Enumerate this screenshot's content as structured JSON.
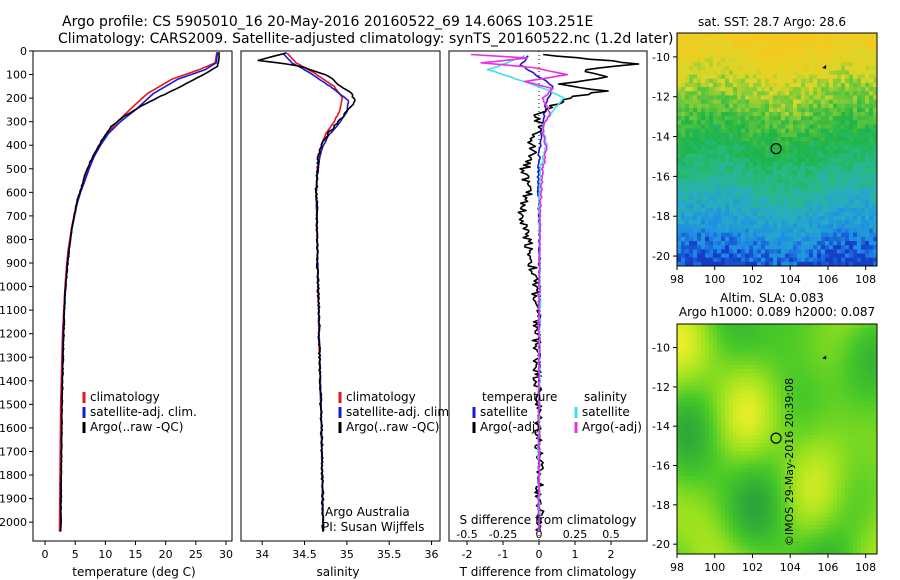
{
  "header": {
    "line1": "Argo profile: CS 5905010_16 20-May-2016 20160522_69 14.606S 103.251E",
    "line2": "Climatology: CARS2009. Satellite-adjusted climatology: synTS_20160522.nc (1.2d later)"
  },
  "colors": {
    "climatology": "#e8141b",
    "satellite_adj": "#1a1ad6",
    "argo": "#000000",
    "t_satellite": "#1a1ad6",
    "t_argo": "#000000",
    "s_satellite": "#3fe0ee",
    "s_argo": "#e830e0"
  },
  "chart_data": [
    {
      "id": "temperature",
      "type": "line",
      "xlabel": "temperature (deg C)",
      "ylabel": "",
      "xlim": [
        -2,
        31
      ],
      "ylim": [
        2080,
        0
      ],
      "xticks": [
        0,
        5,
        10,
        15,
        20,
        25,
        30
      ],
      "yticks": [
        0,
        100,
        200,
        300,
        400,
        500,
        600,
        700,
        800,
        900,
        1000,
        1100,
        1200,
        1300,
        1400,
        1500,
        1600,
        1700,
        1800,
        1900,
        2000
      ],
      "legend": [
        "climatology",
        "satellite-adj. clim.",
        "Argo(..raw -QC)"
      ],
      "series": [
        {
          "name": "climatology",
          "color_key": "climatology",
          "x": [
            28.5,
            28.2,
            25.5,
            21,
            17,
            14,
            12,
            10.2,
            9,
            8,
            7.2,
            6.5,
            5.8,
            5.2,
            4.8,
            4.4,
            4.1,
            3.8,
            3.6,
            3.3,
            3.1,
            2.9,
            2.6,
            2.4
          ],
          "y": [
            5,
            50,
            80,
            120,
            180,
            250,
            300,
            350,
            400,
            450,
            500,
            550,
            600,
            650,
            700,
            750,
            800,
            850,
            900,
            1000,
            1100,
            1200,
            1500,
            2040
          ]
        },
        {
          "name": "satellite-adj. clim.",
          "color_key": "satellite_adj",
          "x": [
            28.6,
            28.4,
            26.5,
            22,
            18,
            15,
            12.5,
            10.5,
            9.2,
            8.1,
            7.3,
            6.6,
            5.9,
            5.3,
            4.9,
            4.5,
            4.2,
            3.9,
            3.7,
            3.4,
            3.2,
            3,
            2.8,
            2.6
          ],
          "y": [
            5,
            50,
            80,
            120,
            180,
            250,
            300,
            350,
            400,
            450,
            500,
            550,
            600,
            650,
            700,
            750,
            800,
            850,
            900,
            1000,
            1100,
            1200,
            1500,
            2040
          ]
        },
        {
          "name": "Argo(..raw -QC)",
          "color_key": "argo",
          "x": [
            28.9,
            28.8,
            28.6,
            27,
            24,
            21,
            18.5,
            15.5,
            13,
            11,
            9.4,
            8.3,
            7.3,
            6.6,
            6,
            5.4,
            5,
            4.6,
            4.3,
            4,
            3.7,
            3.4,
            3.2,
            3.1,
            2.8,
            2.6
          ],
          "y": [
            5,
            40,
            65,
            90,
            130,
            170,
            200,
            240,
            280,
            320,
            380,
            430,
            480,
            530,
            580,
            630,
            680,
            730,
            780,
            840,
            920,
            1000,
            1100,
            1200,
            1500,
            2040
          ]
        }
      ]
    },
    {
      "id": "salinity",
      "type": "line",
      "xlabel": "salinity",
      "ylabel": "",
      "xlim": [
        33.75,
        36.1
      ],
      "ylim": [
        2080,
        0
      ],
      "xticks": [
        34,
        34.5,
        35,
        35.5,
        36
      ],
      "legend": [
        "climatology",
        "satellite-adj. clim.",
        "Argo(..raw -QC)"
      ],
      "annotation": [
        "Argo Australia",
        "PI: Susan Wijffels"
      ],
      "series": [
        {
          "name": "climatology",
          "color_key": "climatology",
          "x": [
            34.3,
            34.4,
            34.6,
            34.85,
            34.95,
            34.92,
            34.85,
            34.75,
            34.68,
            34.65,
            34.64,
            34.65,
            34.66,
            34.68,
            34.7,
            34.72
          ],
          "y": [
            10,
            50,
            90,
            150,
            200,
            250,
            300,
            350,
            420,
            500,
            600,
            800,
            1000,
            1300,
            1600,
            2040
          ]
        },
        {
          "name": "satellite-adj. clim.",
          "color_key": "satellite_adj",
          "x": [
            34.25,
            34.35,
            34.55,
            34.8,
            35.02,
            35.0,
            34.9,
            34.78,
            34.7,
            34.66,
            34.64,
            34.65,
            34.66,
            34.68,
            34.7,
            34.72
          ],
          "y": [
            10,
            50,
            90,
            150,
            210,
            260,
            310,
            360,
            420,
            500,
            600,
            800,
            1000,
            1300,
            1600,
            2040
          ]
        },
        {
          "name": "Argo(..raw -QC)",
          "color_key": "argo",
          "x": [
            34.3,
            33.95,
            34.3,
            34.5,
            34.75,
            34.9,
            35.05,
            35.1,
            35.02,
            34.9,
            34.78,
            34.7,
            34.66,
            34.65,
            34.64,
            34.65,
            34.66,
            34.68,
            34.7,
            34.72
          ],
          "y": [
            8,
            40,
            55,
            70,
            100,
            140,
            180,
            210,
            250,
            300,
            350,
            400,
            460,
            520,
            600,
            800,
            1000,
            1300,
            1600,
            2040
          ]
        }
      ]
    },
    {
      "id": "difference",
      "type": "line",
      "xlabel": "T difference from climatology",
      "xlabel_top": "S difference from climatology",
      "xlim": [
        -2.5,
        3
      ],
      "ylim": [
        2080,
        0
      ],
      "xticks": [
        -2,
        -1,
        0,
        1,
        2
      ],
      "xticks_top": [
        "-0.5",
        "-0.25",
        "0",
        "0.25",
        "0.5"
      ],
      "legend_left_title": "temperature",
      "legend_right_title": "salinity",
      "legend": [
        "satellite",
        "Argo(-adj)",
        "satellite",
        "Argo(-adj)"
      ],
      "series": [
        {
          "name": "satellite",
          "group": "temperature",
          "color_key": "t_satellite",
          "x": [
            -0.3,
            -0.5,
            -0.1,
            0.4,
            0.2,
            0.1,
            0.05,
            0,
            -0.02,
            0,
            0.02,
            0.01,
            0,
            0
          ],
          "y": [
            20,
            60,
            100,
            150,
            220,
            300,
            380,
            450,
            550,
            700,
            1000,
            1400,
            1800,
            2040
          ]
        },
        {
          "name": "Argo(-adj)",
          "group": "temperature",
          "color_key": "t_argo",
          "x": [
            0.1,
            1.5,
            2.8,
            1.2,
            2.0,
            0.6,
            1.8,
            0.8,
            0.3,
            -0.1,
            0.1,
            -0.3,
            -0.1,
            -0.4,
            -0.3,
            -0.5,
            -0.3,
            -0.1,
            -0.05,
            0,
            0.02
          ],
          "y": [
            15,
            35,
            55,
            80,
            110,
            140,
            170,
            200,
            240,
            280,
            330,
            380,
            430,
            500,
            600,
            700,
            800,
            1000,
            1300,
            1700,
            2040
          ]
        },
        {
          "name": "satellite",
          "group": "salinity",
          "color_key": "s_satellite",
          "x": [
            -0.4,
            -1.4,
            -0.8,
            -0.2,
            0.3,
            0.7,
            0.4,
            0.1,
            0.2,
            0.05,
            0,
            0.02,
            0,
            0
          ],
          "y": [
            20,
            80,
            110,
            140,
            170,
            200,
            250,
            320,
            400,
            500,
            700,
            1000,
            1500,
            2040
          ]
        },
        {
          "name": "Argo(-adj)",
          "group": "salinity",
          "color_key": "s_argo",
          "x": [
            -1.9,
            -0.3,
            -1.6,
            -0.2,
            0.8,
            -0.4,
            0.4,
            0.1,
            0.3,
            0.1,
            0.2,
            0.1,
            0.02,
            0,
            0
          ],
          "y": [
            15,
            30,
            50,
            70,
            100,
            130,
            160,
            200,
            260,
            330,
            420,
            500,
            700,
            1000,
            2040
          ]
        }
      ]
    },
    {
      "id": "sst_map",
      "type": "heatmap",
      "title": "sat. SST: 28.7  Argo: 28.6",
      "xlim": [
        98,
        108.6
      ],
      "ylim": [
        -20.5,
        -8.8
      ],
      "xticks": [
        98,
        100,
        102,
        104,
        106,
        108
      ],
      "yticks": [
        -10,
        -12,
        -14,
        -16,
        -18,
        -20
      ],
      "marker": {
        "lon": 103.251,
        "lat": -14.606
      },
      "float_track": {
        "lon": 105.8,
        "lat": -10.5
      }
    },
    {
      "id": "sla_map",
      "type": "heatmap",
      "title": "Altim. SLA: 0.083",
      "subtitle": "Argo h1000: 0.089 h2000: 0.087",
      "xlim": [
        98,
        108.6
      ],
      "ylim": [
        -20.5,
        -8.8
      ],
      "xticks": [
        98,
        100,
        102,
        104,
        106,
        108
      ],
      "yticks": [
        -10,
        -12,
        -14,
        -16,
        -18,
        -20
      ],
      "marker": {
        "lon": 103.251,
        "lat": -14.606
      },
      "float_track": {
        "lon": 105.8,
        "lat": -10.5
      }
    }
  ],
  "watermark": "©IMOS 29-May-2016 20:39:08"
}
